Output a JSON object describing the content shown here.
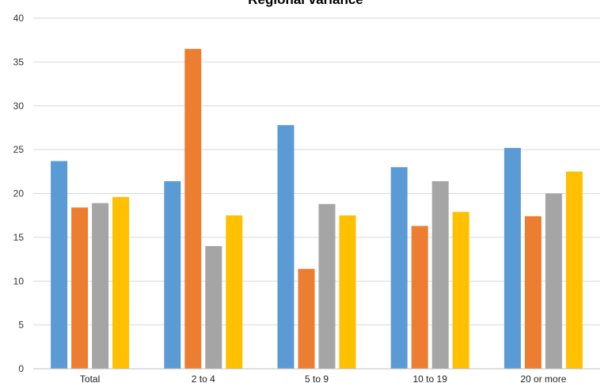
{
  "chart_data": {
    "type": "bar",
    "title": "Regional variance",
    "categories": [
      "Total",
      "2 to 4",
      "5 to 9",
      "10 to 19",
      "20 or more"
    ],
    "series": [
      {
        "values": [
          23.7,
          21.4,
          27.8,
          23.0,
          25.2
        ],
        "color": "#5B9BD5"
      },
      {
        "values": [
          18.4,
          36.5,
          11.4,
          16.3,
          17.4
        ],
        "color": "#ED7D31"
      },
      {
        "values": [
          18.9,
          14.0,
          18.8,
          21.4,
          20.0
        ],
        "color": "#A5A5A5"
      },
      {
        "values": [
          19.6,
          17.5,
          17.5,
          17.9,
          22.5
        ],
        "color": "#FFC000"
      }
    ],
    "ylim": [
      0,
      40
    ],
    "yticks": [
      "0",
      "5",
      "10",
      "15",
      "20",
      "25",
      "30",
      "35",
      "40"
    ],
    "grid": true,
    "legend": "none"
  }
}
